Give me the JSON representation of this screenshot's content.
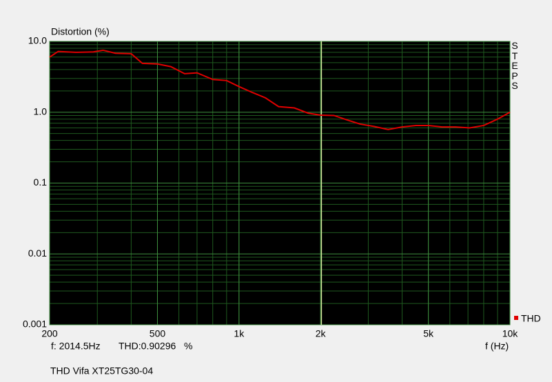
{
  "chart_data": {
    "type": "line",
    "title": "Distortion (%)",
    "x_label": "f (Hz)",
    "x": [
      200,
      215,
      250,
      290,
      315,
      350,
      400,
      440,
      500,
      560,
      630,
      700,
      800,
      900,
      1000,
      1120,
      1250,
      1400,
      1600,
      1800,
      2000,
      2240,
      2500,
      2800,
      3150,
      3550,
      4000,
      4500,
      5000,
      5600,
      6300,
      7100,
      8000,
      9000,
      10000
    ],
    "series": [
      {
        "name": "THD",
        "color": "#e00000",
        "values": [
          6.0,
          7.2,
          7.0,
          7.1,
          7.5,
          6.8,
          6.7,
          4.9,
          4.8,
          4.4,
          3.5,
          3.6,
          2.9,
          2.8,
          2.3,
          1.9,
          1.6,
          1.2,
          1.15,
          0.97,
          0.91,
          0.9,
          0.78,
          0.68,
          0.63,
          0.57,
          0.62,
          0.65,
          0.65,
          0.62,
          0.62,
          0.6,
          0.65,
          0.8,
          1.0
        ]
      }
    ],
    "xlim": [
      200,
      10000
    ],
    "ylim": [
      0.001,
      10
    ],
    "log_x": true,
    "log_y": true,
    "grid": true,
    "xticks": [
      200,
      500,
      {
        "value": 1000,
        "label": "1k"
      },
      {
        "value": 2000,
        "label": "2k"
      },
      {
        "value": 5000,
        "label": "5k"
      },
      {
        "value": 10000,
        "label": "10k"
      }
    ],
    "yticks": [
      {
        "value": 0.001,
        "label": "0.001"
      },
      {
        "value": 0.01,
        "label": "0.01"
      },
      {
        "value": 0.1,
        "label": "0.1"
      },
      {
        "value": 1,
        "label": "1.0"
      },
      {
        "value": 10,
        "label": "10.0"
      }
    ],
    "cursor": {
      "x": 2014.5,
      "x_label": "f: 2014.5Hz",
      "value_label": "THD:0.90296   %"
    },
    "side_label": "STEPS",
    "footer": "THD Vifa XT25TG30-04"
  }
}
